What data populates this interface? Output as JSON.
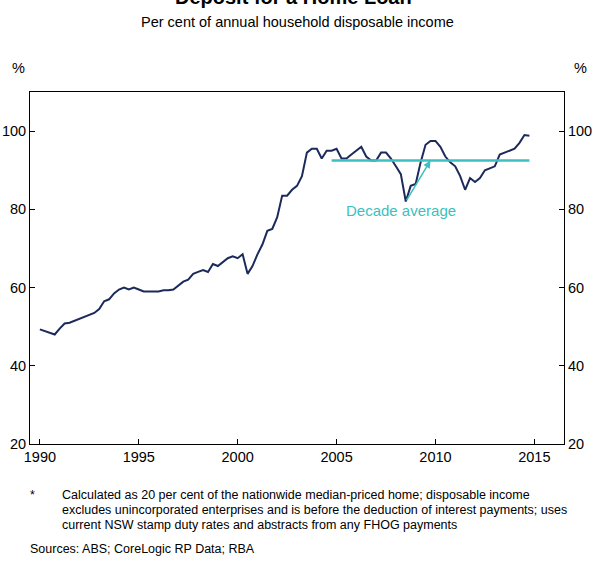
{
  "chart_data": {
    "type": "line",
    "title": "Deposit for a Home Loan*",
    "subtitle": "Per cent of annual household disposable income",
    "y_label": "%",
    "x": [
      1990,
      1990.25,
      1990.5,
      1990.75,
      1991,
      1991.25,
      1991.5,
      1991.75,
      1992,
      1992.25,
      1992.5,
      1992.75,
      1993,
      1993.25,
      1993.5,
      1993.75,
      1994,
      1994.25,
      1994.5,
      1994.75,
      1995,
      1995.25,
      1995.5,
      1995.75,
      1996,
      1996.25,
      1996.5,
      1996.75,
      1997,
      1997.25,
      1997.5,
      1997.75,
      1998,
      1998.25,
      1998.5,
      1998.75,
      1999,
      1999.25,
      1999.5,
      1999.75,
      2000,
      2000.25,
      2000.5,
      2000.75,
      2001,
      2001.25,
      2001.5,
      2001.75,
      2002,
      2002.25,
      2002.5,
      2002.75,
      2003,
      2003.25,
      2003.5,
      2003.75,
      2004,
      2004.25,
      2004.5,
      2004.75,
      2005,
      2005.25,
      2005.5,
      2005.75,
      2006,
      2006.25,
      2006.5,
      2006.75,
      2007,
      2007.25,
      2007.5,
      2007.75,
      2008,
      2008.25,
      2008.5,
      2008.75,
      2009,
      2009.25,
      2009.5,
      2009.75,
      2010,
      2010.25,
      2010.5,
      2010.75,
      2011,
      2011.25,
      2011.5,
      2011.75,
      2012,
      2012.25,
      2012.5,
      2012.75,
      2013,
      2013.25,
      2013.5,
      2013.75,
      2014,
      2014.25,
      2014.5,
      2014.75
    ],
    "series": [
      {
        "color": "#1b2a5a",
        "line_style": "solid",
        "values": [
          49.3,
          48.8,
          48.5,
          48.0,
          49.5,
          50.8,
          51.0,
          51.5,
          52.0,
          52.5,
          53.0,
          53.5,
          54.5,
          56.5,
          57.0,
          58.5,
          59.5,
          60.0,
          59.5,
          60.0,
          59.5,
          59.0,
          59.0,
          59.0,
          59.0,
          59.3,
          59.3,
          59.5,
          60.5,
          61.5,
          62.0,
          63.5,
          64.0,
          64.5,
          64.0,
          66.0,
          65.5,
          66.5,
          67.5,
          68.0,
          67.5,
          68.5,
          63.5,
          65.5,
          68.5,
          71.0,
          74.5,
          75.0,
          78.0,
          83.5,
          83.5,
          85.0,
          86.0,
          88.5,
          94.5,
          95.5,
          95.5,
          93.0,
          95.0,
          95.0,
          95.5,
          93.0,
          93.0,
          94.0,
          95.0,
          96.0,
          93.5,
          92.5,
          92.5,
          94.5,
          94.5,
          93.0,
          91.0,
          89.0,
          82.0,
          86.0,
          86.5,
          92.0,
          96.5,
          97.5,
          97.5,
          96.0,
          93.5,
          92.0,
          91.0,
          88.5,
          85.0,
          88.0,
          87.0,
          88.0,
          90.0,
          90.5,
          91.0,
          94.0,
          94.5,
          95.0,
          95.5,
          97.0,
          99.0,
          98.8
        ]
      },
      {
        "name": "Decade average",
        "color": "#3cbfc0",
        "line_style": "solid",
        "x": [
          2004.75,
          2014.75
        ],
        "values": [
          92.5,
          92.5
        ]
      }
    ],
    "xlim": [
      1989.5,
      2016.5
    ],
    "xticks": [
      1990,
      1995,
      2000,
      2005,
      2010,
      2015
    ],
    "ylim": [
      20,
      110
    ],
    "yticks": [
      20,
      40,
      60,
      80,
      100
    ],
    "grid": false,
    "footnote_mark": "*",
    "footnote": "Calculated as 20 per cent of the nationwide median-priced home; disposable income excludes unincorporated enterprises and is before the deduction of interest payments; uses current NSW stamp duty rates and abstracts from any FHOG payments",
    "sources": "Sources: ABS; CoreLogic RP Data; RBA"
  }
}
